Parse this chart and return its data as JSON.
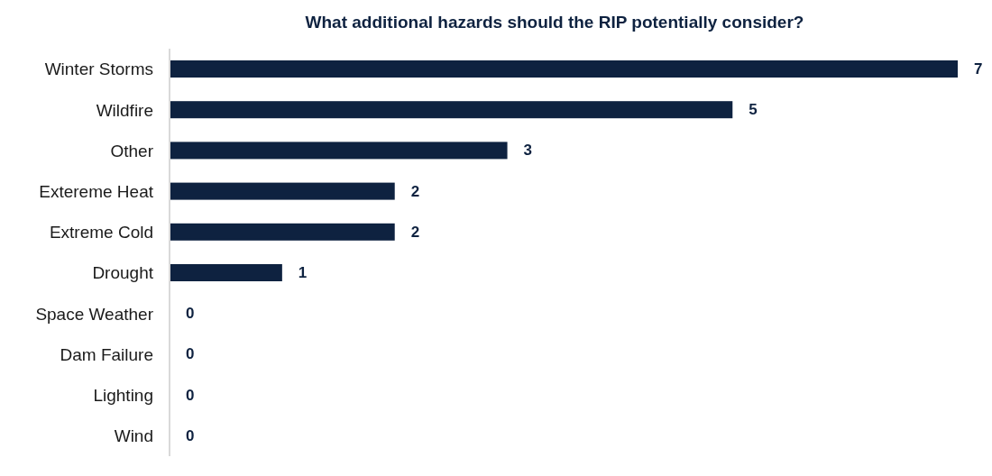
{
  "chart_data": {
    "type": "bar",
    "orientation": "horizontal",
    "title": "What additional hazards should the RIP potentially consider?",
    "categories": [
      "Winter Storms",
      "Wildfire",
      "Other",
      "Extereme Heat",
      "Extreme Cold",
      "Drought",
      "Space Weather",
      "Dam Failure",
      "Lighting",
      "Wind"
    ],
    "values": [
      7,
      5,
      3,
      2,
      2,
      1,
      0,
      0,
      0,
      0
    ],
    "color": "#0e2240",
    "data_labels": true,
    "grid": false,
    "legend": false
  }
}
